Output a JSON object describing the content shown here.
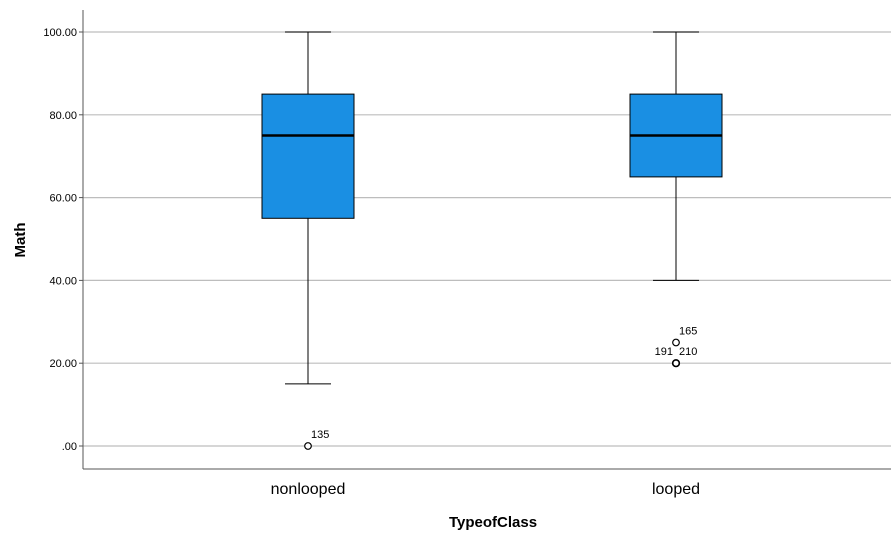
{
  "chart_data": {
    "type": "box",
    "xlabel": "TypeofClass",
    "ylabel": "Math",
    "ylim": [
      0,
      100
    ],
    "yticks": [
      {
        "value": 0,
        "label": ".00"
      },
      {
        "value": 20,
        "label": "20.00"
      },
      {
        "value": 40,
        "label": "40.00"
      },
      {
        "value": 60,
        "label": "60.00"
      },
      {
        "value": 80,
        "label": "80.00"
      },
      {
        "value": 100,
        "label": "100.00"
      }
    ],
    "grid": true,
    "box_color": "#1a8fe3",
    "categories": [
      "nonlooped",
      "looped"
    ],
    "boxes": [
      {
        "category": "nonlooped",
        "whisker_low": 15,
        "q1": 55,
        "median": 75,
        "q3": 85,
        "whisker_high": 100,
        "outliers": [
          {
            "value": 0,
            "label": "135"
          }
        ]
      },
      {
        "category": "looped",
        "whisker_low": 40,
        "q1": 65,
        "median": 75,
        "q3": 85,
        "whisker_high": 100,
        "outliers": [
          {
            "value": 25,
            "label": "165"
          },
          {
            "value": 20,
            "label": "210"
          },
          {
            "value": 20,
            "label": "191"
          }
        ]
      }
    ]
  }
}
